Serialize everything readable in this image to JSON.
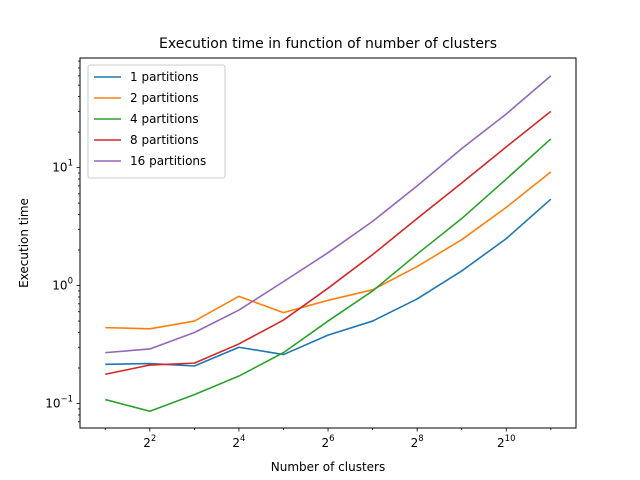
{
  "chart_data": {
    "type": "line",
    "title": "Execution time in function of number of clusters",
    "xlabel": "Number of clusters",
    "ylabel": "Execution time",
    "xscale": "log2",
    "yscale": "log10",
    "x": [
      2,
      4,
      8,
      16,
      32,
      64,
      128,
      256,
      512,
      1024,
      2048
    ],
    "xlim": [
      1.35,
      3030
    ],
    "ylim": [
      0.062,
      85
    ],
    "x_ticks": [
      {
        "value": 4,
        "base": "2",
        "exp": "2"
      },
      {
        "value": 16,
        "base": "2",
        "exp": "4"
      },
      {
        "value": 64,
        "base": "2",
        "exp": "6"
      },
      {
        "value": 256,
        "base": "2",
        "exp": "8"
      },
      {
        "value": 1024,
        "base": "2",
        "exp": "10"
      }
    ],
    "y_ticks": [
      {
        "value": 0.1,
        "base": "10",
        "exp": "−1"
      },
      {
        "value": 1,
        "base": "10",
        "exp": "0"
      },
      {
        "value": 10,
        "base": "10",
        "exp": "1"
      }
    ],
    "grid": false,
    "legend_position": "top-left",
    "series": [
      {
        "name": "1 partitions",
        "color": "#1f77b4",
        "values": [
          0.215,
          0.218,
          0.208,
          0.3,
          0.26,
          0.38,
          0.5,
          0.77,
          1.33,
          2.5,
          5.4
        ]
      },
      {
        "name": "2 partitions",
        "color": "#ff7f0e",
        "values": [
          0.44,
          0.43,
          0.5,
          0.81,
          0.59,
          0.75,
          0.92,
          1.45,
          2.45,
          4.6,
          9.2
        ]
      },
      {
        "name": "4 partitions",
        "color": "#2ca02c",
        "values": [
          0.108,
          0.086,
          0.119,
          0.171,
          0.27,
          0.5,
          0.9,
          1.85,
          3.7,
          8.0,
          17.5
        ]
      },
      {
        "name": "8 partitions",
        "color": "#d62728",
        "values": [
          0.177,
          0.212,
          0.22,
          0.32,
          0.51,
          0.95,
          1.83,
          3.7,
          7.4,
          15.0,
          30.0
        ]
      },
      {
        "name": "16 partitions",
        "color": "#9467bd",
        "values": [
          0.27,
          0.29,
          0.4,
          0.62,
          1.08,
          1.9,
          3.5,
          7.0,
          14.5,
          28.5,
          60.0
        ]
      }
    ]
  }
}
